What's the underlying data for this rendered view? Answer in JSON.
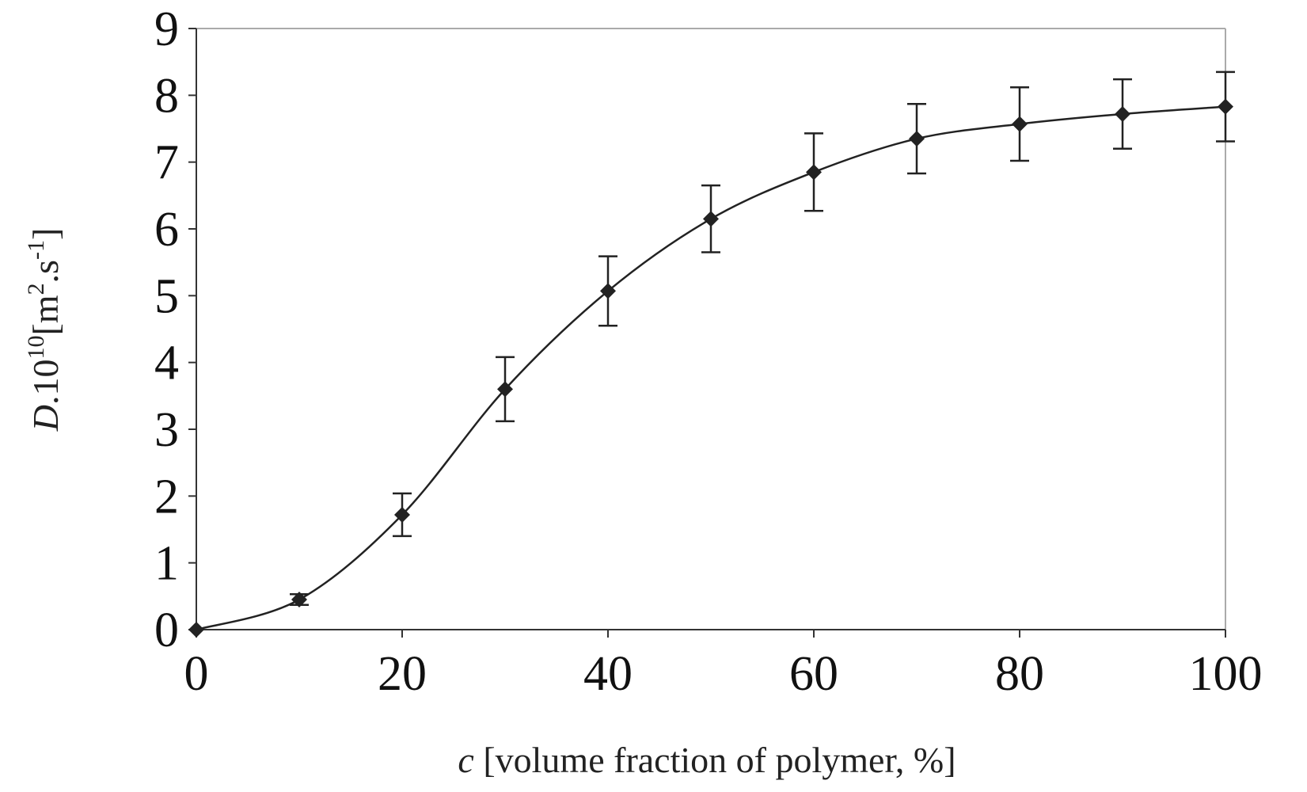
{
  "chart_data": {
    "type": "scatter",
    "title": "",
    "xlabel": {
      "var": "c",
      "text": " [volume fraction of polymer, %]"
    },
    "ylabel": {
      "var": "D",
      "mid": ".10",
      "exp": "10",
      "unit_open": "[m",
      "unit_exp1": "2",
      "unit_mid": ".s",
      "unit_exp2": "-1",
      "unit_close": "]"
    },
    "xlim": [
      0,
      100
    ],
    "ylim": [
      0,
      9
    ],
    "xticks": [
      0,
      20,
      40,
      60,
      80,
      100
    ],
    "yticks": [
      0,
      1,
      2,
      3,
      4,
      5,
      6,
      7,
      8,
      9
    ],
    "grid": false,
    "legend": "none",
    "series": [
      {
        "marker": "diamond",
        "line": "smooth",
        "x": [
          0,
          10,
          20,
          30,
          40,
          50,
          60,
          70,
          80,
          90,
          100
        ],
        "y": [
          0.0,
          0.45,
          1.72,
          3.6,
          5.07,
          6.15,
          6.85,
          7.35,
          7.57,
          7.72,
          7.83
        ],
        "error": [
          0.0,
          0.08,
          0.32,
          0.48,
          0.52,
          0.5,
          0.58,
          0.52,
          0.55,
          0.52,
          0.52
        ]
      }
    ],
    "colors": {
      "line": "#222222",
      "frame": "#aaaaaa",
      "axis": "#333333"
    }
  }
}
